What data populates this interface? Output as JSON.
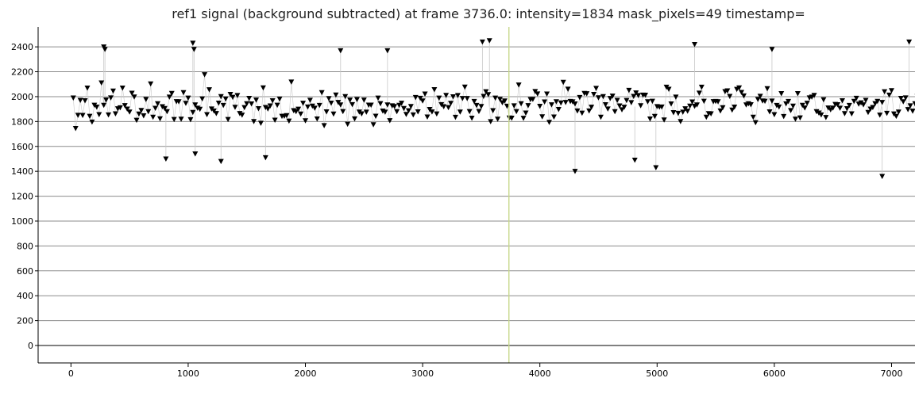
{
  "title": "ref1 signal (background subtracted) at frame 3736.0: intensity=1834 mask_pixels=49 timestamp=",
  "colors": {
    "marker": "#000000",
    "stem": "#c8c8c8",
    "grid": "#8c8c8c",
    "axis": "#000000",
    "cursor": "#c7d88a"
  },
  "chart_data": {
    "type": "scatter",
    "marker": "triangle-down",
    "title": "ref1 signal (background subtracted) at frame 3736.0: intensity=1834 mask_pixels=49 timestamp=",
    "xlabel": "",
    "ylabel": "",
    "xlim": [
      -280,
      7200
    ],
    "ylim": [
      -140,
      2560
    ],
    "x_ticks": [
      0,
      1000,
      2000,
      3000,
      4000,
      5000,
      6000,
      7000
    ],
    "y_ticks": [
      0,
      200,
      400,
      600,
      800,
      1000,
      1200,
      1400,
      1600,
      1800,
      2000,
      2200,
      2400
    ],
    "grid": true,
    "current_frame": 3736.0,
    "current_intensity": 1834,
    "mask_pixels": 49,
    "series": [
      {
        "x_start": 20,
        "x_step": 20,
        "y": [
          1990,
          1745,
          1851,
          1971,
          1850,
          1968,
          2070,
          1843,
          1797,
          1932,
          1917,
          1856,
          2111,
          1931,
          1974,
          1854,
          1991,
          2046,
          1863,
          1903,
          1911,
          2070,
          1929,
          1901,
          1877,
          2028,
          1998,
          1811,
          1861,
          1890,
          1847,
          1978,
          1880,
          2103,
          1836,
          1907,
          1944,
          1823,
          1920,
          1906,
          1880,
          1997,
          2027,
          1817,
          1961,
          1960,
          1820,
          2033,
          1947,
          1989,
          1816,
          1874,
          1934,
          1908,
          1899,
          1983,
          2177,
          1856,
          2056,
          1902,
          1886,
          1865,
          1949,
          2001,
          1930,
          1982,
          1817,
          2019,
          1996,
          1915,
          2010,
          1865,
          1852,
          1913,
          1944,
          1987,
          1942,
          1801,
          1973,
          1904,
          1787,
          2071,
          1914,
          1902,
          1926,
          1968,
          1812,
          1932,
          1981,
          1843,
          1844,
          1848,
          1805,
          2118,
          1888,
          1880,
          1900,
          1861,
          1948,
          1807,
          1918,
          1972,
          1925,
          1908,
          1821,
          1930,
          2033,
          1768,
          1879,
          1985,
          1949,
          1861,
          2014,
          1954,
          1934,
          1881,
          2001,
          1779,
          1973,
          1937,
          1822,
          1977,
          1877,
          1863,
          1973,
          1876,
          1933,
          1933,
          1775,
          1844,
          1989,
          1945,
          1885,
          1876,
          1934,
          1808,
          1927,
          1922,
          1880,
          1931,
          1948,
          1906,
          1858,
          1887,
          1922,
          1854,
          1994,
          1879,
          1988,
          1966,
          2022,
          1837,
          1898,
          1878,
          2057,
          1862,
          1989,
          1937,
          1920,
          2011,
          1913,
          1947,
          2000,
          1835,
          2010,
          1877,
          1986,
          2078,
          1986,
          1881,
          1828,
          1962,
          1930,
          1882,
          1922,
          2003,
          2040,
          2017,
          1800,
          1888,
          1989,
          1820,
          1979,
          1952,
          1966,
          1924,
          1829,
          1828,
          1927,
          1881,
          2094,
          1944,
          1827,
          1869,
          1929,
          1977,
          1979,
          2042,
          2023,
          1923,
          1839,
          1958,
          2022,
          1794,
          1935,
          1837,
          1960,
          1898,
          1950,
          2116,
          1954,
          2061,
          1962,
          1959,
          1942,
          1886,
          1994,
          1868,
          2027,
          2024,
          1886,
          1916,
          2019,
          2067,
          1992,
          1836,
          2001,
          1936,
          1902,
          1986,
          2005,
          1880,
          1971,
          1926,
          1895,
          1916,
          1970,
          2051,
          1953,
          2003,
          2031,
          2010,
          1928,
          2013,
          2012,
          1960,
          1821,
          1964,
          1842,
          1921,
          1917,
          1918,
          1813,
          2077,
          2060,
          1942,
          1872,
          1997,
          1867,
          1801,
          1876,
          1903,
          1884,
          1925,
          1958,
          1923,
          1934,
          2029,
          2077,
          1964,
          1836,
          1864,
          1863,
          1961,
          1962,
          1960,
          1886,
          1912,
          2041,
          2047,
          2003,
          1893,
          1917,
          2059,
          2071,
          2035,
          2007,
          1934,
          1944,
          1936,
          1836,
          1792,
          1978,
          2004,
          1966,
          1964,
          2065,
          1879,
          1965,
          1856,
          1930,
          1918,
          2025,
          1841,
          1943,
          1962,
          1889,
          1925,
          1820,
          2025,
          1830,
          1931,
          1910,
          1948,
          1991,
          1997,
          2011,
          1880,
          1869,
          1854,
          1976,
          1833,
          1910,
          1895,
          1909,
          1938,
          1936,
          1908,
          1968,
          1864,
          1904,
          1930,
          1863,
          1963,
          1988,
          1941,
          1951,
          1935,
          1971,
          1874,
          1901,
          1914,
          1945,
          1963,
          1852,
          1954,
          2040,
          1867,
          2013,
          2049,
          1862,
          1843,
          1877,
          1987,
          1960,
          1991,
          1897,
          1927,
          1884,
          1944,
          2002,
          1896,
          1890
        ],
        "highlights": [
          [
            280,
            2400
          ],
          [
            290,
            2380
          ],
          [
            810,
            1500
          ],
          [
            1040,
            2430
          ],
          [
            1050,
            2380
          ],
          [
            1060,
            1540
          ],
          [
            1280,
            1480
          ],
          [
            1660,
            1510
          ],
          [
            2300,
            2370
          ],
          [
            2700,
            2370
          ],
          [
            3510,
            2440
          ],
          [
            3570,
            2450
          ],
          [
            4300,
            1400
          ],
          [
            4810,
            1490
          ],
          [
            4990,
            1430
          ],
          [
            5320,
            2420
          ],
          [
            5980,
            2380
          ],
          [
            6920,
            1360
          ],
          [
            7150,
            2440
          ]
        ]
      }
    ]
  }
}
